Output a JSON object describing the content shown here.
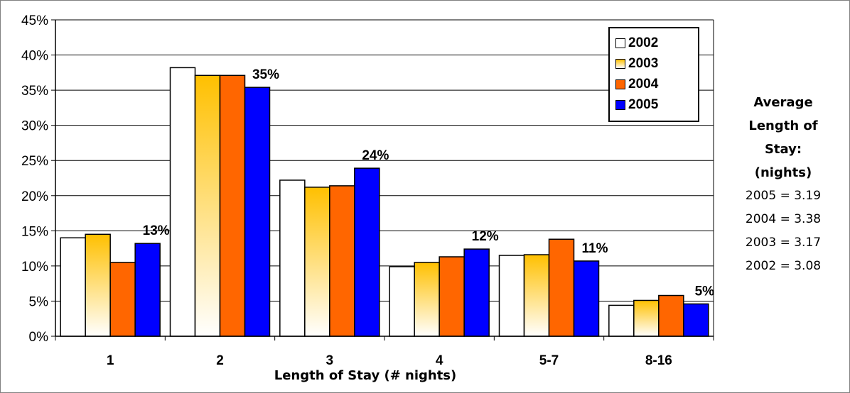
{
  "chart_data": {
    "type": "bar",
    "title": "",
    "xlabel": "Length of Stay (# nights)",
    "ylabel": "",
    "ylim": [
      0,
      45
    ],
    "y_ticks": [
      "0%",
      "5%",
      "10%",
      "15%",
      "20%",
      "25%",
      "30%",
      "35%",
      "40%",
      "45%"
    ],
    "categories": [
      "1",
      "2",
      "3",
      "4",
      "5-7",
      "8-16"
    ],
    "series": [
      {
        "name": "2002",
        "values": [
          14.0,
          38.2,
          22.2,
          9.9,
          11.5,
          4.4
        ]
      },
      {
        "name": "2003",
        "values": [
          14.5,
          37.1,
          21.2,
          10.5,
          11.6,
          5.1
        ]
      },
      {
        "name": "2004",
        "values": [
          10.5,
          37.1,
          21.4,
          11.3,
          13.8,
          5.8
        ]
      },
      {
        "name": "2005",
        "values": [
          13.2,
          35.4,
          23.9,
          12.4,
          10.7,
          4.6
        ]
      }
    ],
    "data_labels": [
      "13%",
      "35%",
      "24%",
      "12%",
      "11%",
      "5%"
    ],
    "legend_position": "top-right",
    "grid": true
  },
  "side_note": {
    "title_lines": [
      "Average",
      "Length of",
      "Stay:",
      "(nights)"
    ],
    "lines": [
      "2005 = 3.19",
      "2004 = 3.38",
      "2003 = 3.17",
      "2002 = 3.08"
    ]
  },
  "colors": {
    "s2002": "#ffffff",
    "s2003_top": "#ffc000",
    "s2003_bottom": "#ffffff",
    "s2004": "#ff6600",
    "s2005": "#0000ff",
    "grid": "#000000"
  }
}
